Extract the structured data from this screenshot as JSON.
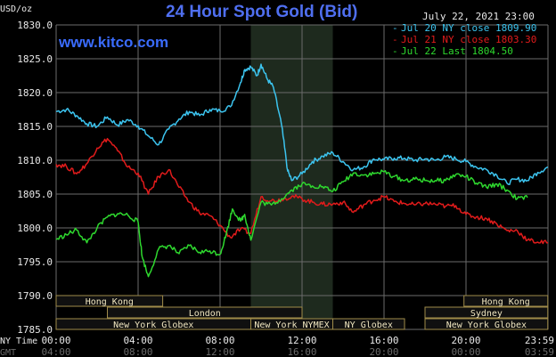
{
  "header": {
    "title": "24 Hour Spot Gold (Bid)",
    "unit": "USD/oz",
    "date": "July 22, 2021 23:00",
    "site": "www.kitco.com"
  },
  "colors": {
    "bg": "#000000",
    "grid": "#6b6b6b",
    "highlight": "#1e2a1e",
    "title": "#4f6ff0",
    "site": "#3a6cff",
    "text": "#e8e8e8",
    "jul20": "#3cc4ef",
    "jul21": "#e11b1b",
    "jul22": "#2ed82e",
    "session_bg": "#101010",
    "session_border": "#a08c4a",
    "session_text": "#f0e6c0"
  },
  "chart_data": {
    "type": "line",
    "title": "24 Hour Spot Gold (Bid)",
    "ylabel": "USD/oz",
    "ylim": [
      1785,
      1830
    ],
    "yticks": [
      "1785.0",
      "1790.0",
      "1795.0",
      "1800.0",
      "1805.0",
      "1810.0",
      "1815.0",
      "1820.0",
      "1825.0",
      "1830.0"
    ],
    "xlim": [
      0,
      24
    ],
    "grid": true,
    "legend_position": "top-right",
    "x_ny_labels": [
      "00:00",
      "04:00",
      "08:00",
      "12:00",
      "16:00",
      "20:00",
      "23:59"
    ],
    "x_gmt_labels": [
      "04:00",
      "08:00",
      "12:00",
      "16:00",
      "20:00",
      "00:00",
      "03:59"
    ],
    "x_row_labels": {
      "ny": "NY Time",
      "gmt": "GMT"
    },
    "highlight_hours": [
      9.5,
      13.5
    ],
    "series": [
      {
        "name": "Jul 20 NY close 1809.90",
        "color_key": "jul20",
        "x": [
          0,
          0.5,
          1,
          1.5,
          2,
          2.5,
          3,
          3.5,
          4,
          4.5,
          5,
          5.5,
          6,
          6.5,
          7,
          7.5,
          8,
          8.5,
          9,
          9.2,
          9.5,
          9.8,
          10,
          10.3,
          10.6,
          11,
          11.3,
          11.5,
          12,
          12.5,
          13,
          13.5,
          14,
          14.5,
          15,
          15.5,
          16,
          16.5,
          17,
          17.5,
          18,
          18.5,
          19,
          19.5,
          20,
          20.5,
          21,
          21.5,
          22,
          22.5,
          23,
          23.5,
          24
        ],
        "y": [
          1817.2,
          1817.5,
          1816.6,
          1815.4,
          1815.0,
          1816.4,
          1815.2,
          1816.0,
          1815.1,
          1813.6,
          1812.3,
          1814.6,
          1816.1,
          1817.2,
          1816.6,
          1817.5,
          1817.3,
          1817.9,
          1821.5,
          1823.4,
          1823.8,
          1822.5,
          1824.2,
          1822.0,
          1820.8,
          1815.2,
          1808.4,
          1807.0,
          1808.0,
          1809.8,
          1810.6,
          1811.1,
          1809.8,
          1808.6,
          1809.0,
          1810.2,
          1810.1,
          1810.3,
          1810.3,
          1810.0,
          1810.2,
          1810.0,
          1810.5,
          1810.2,
          1809.8,
          1809.0,
          1808.6,
          1807.8,
          1806.6,
          1807.2,
          1807.0,
          1808.2,
          1809.0
        ]
      },
      {
        "name": "Jul 21 NY close 1803.30",
        "color_key": "jul21",
        "x": [
          0,
          0.5,
          1,
          1.5,
          2,
          2.5,
          3,
          3.5,
          4,
          4.5,
          5,
          5.5,
          6,
          6.5,
          7,
          7.5,
          8,
          8.5,
          9,
          9.5,
          10,
          10.5,
          11,
          11.5,
          12,
          12.5,
          13,
          13.5,
          14,
          14.5,
          15,
          15.5,
          16,
          16.5,
          17,
          17.5,
          18,
          18.5,
          19,
          19.5,
          20,
          20.5,
          21,
          21.5,
          22,
          22.5,
          23,
          23.5,
          24
        ],
        "y": [
          1809.4,
          1809.1,
          1808.0,
          1809.5,
          1811.8,
          1813.2,
          1811.4,
          1809.0,
          1808.1,
          1805.0,
          1807.6,
          1808.6,
          1806.0,
          1803.8,
          1802.2,
          1801.8,
          1800.4,
          1798.6,
          1799.8,
          1799.2,
          1804.6,
          1804.0,
          1804.2,
          1804.7,
          1804.3,
          1803.8,
          1803.5,
          1803.5,
          1803.8,
          1802.3,
          1803.4,
          1804.1,
          1804.6,
          1803.9,
          1803.6,
          1803.4,
          1803.6,
          1803.5,
          1803.2,
          1803.3,
          1802.0,
          1801.6,
          1801.4,
          1800.6,
          1799.6,
          1799.6,
          1798.2,
          1797.9,
          1797.8
        ]
      },
      {
        "name": "Jul 22 Last 1804.50",
        "color_key": "jul22",
        "x": [
          0,
          0.5,
          1,
          1.5,
          2,
          2.5,
          3,
          3.5,
          4,
          4.2,
          4.5,
          5,
          5.5,
          6,
          6.5,
          7,
          7.5,
          8,
          8.3,
          8.6,
          9,
          9.2,
          9.5,
          10,
          10.5,
          11,
          11.5,
          12,
          12.5,
          13,
          13.5,
          14,
          14.5,
          15,
          15.5,
          16,
          16.5,
          17,
          17.5,
          18,
          18.5,
          19,
          19.5,
          20,
          20.5,
          21,
          21.5,
          22,
          22.5,
          23
        ],
        "y": [
          1798.3,
          1799.0,
          1799.7,
          1797.8,
          1800.0,
          1801.6,
          1802.1,
          1801.9,
          1800.9,
          1795.7,
          1792.8,
          1796.9,
          1797.4,
          1796.2,
          1797.4,
          1796.4,
          1796.6,
          1796.1,
          1799.1,
          1802.8,
          1801.0,
          1802.0,
          1798.2,
          1803.8,
          1803.4,
          1804.3,
          1805.6,
          1806.5,
          1806.2,
          1806.1,
          1805.4,
          1806.8,
          1808.1,
          1807.8,
          1808.0,
          1808.3,
          1807.6,
          1807.0,
          1807.2,
          1807.0,
          1807.0,
          1807.0,
          1807.9,
          1807.6,
          1806.6,
          1806.0,
          1806.5,
          1805.6,
          1804.3,
          1804.5
        ]
      }
    ],
    "sessions": [
      {
        "label": "Hong Kong",
        "start": 0,
        "end": 5.2,
        "row": 0
      },
      {
        "label": "Hong Kong",
        "start": 19.9,
        "end": 23.99,
        "row": 0
      },
      {
        "label": "London",
        "start": 2.5,
        "end": 12.0,
        "row": 1
      },
      {
        "label": "Sydney",
        "start": 18.0,
        "end": 23.99,
        "row": 1
      },
      {
        "label": "New York Globex",
        "start": 0,
        "end": 9.5,
        "row": 2
      },
      {
        "label": "New York NYMEX",
        "start": 9.5,
        "end": 13.5,
        "row": 2
      },
      {
        "label": "NY Globex",
        "start": 13.5,
        "end": 17.0,
        "row": 2
      },
      {
        "label": "New York Globex",
        "start": 18.0,
        "end": 23.99,
        "row": 2
      }
    ]
  }
}
